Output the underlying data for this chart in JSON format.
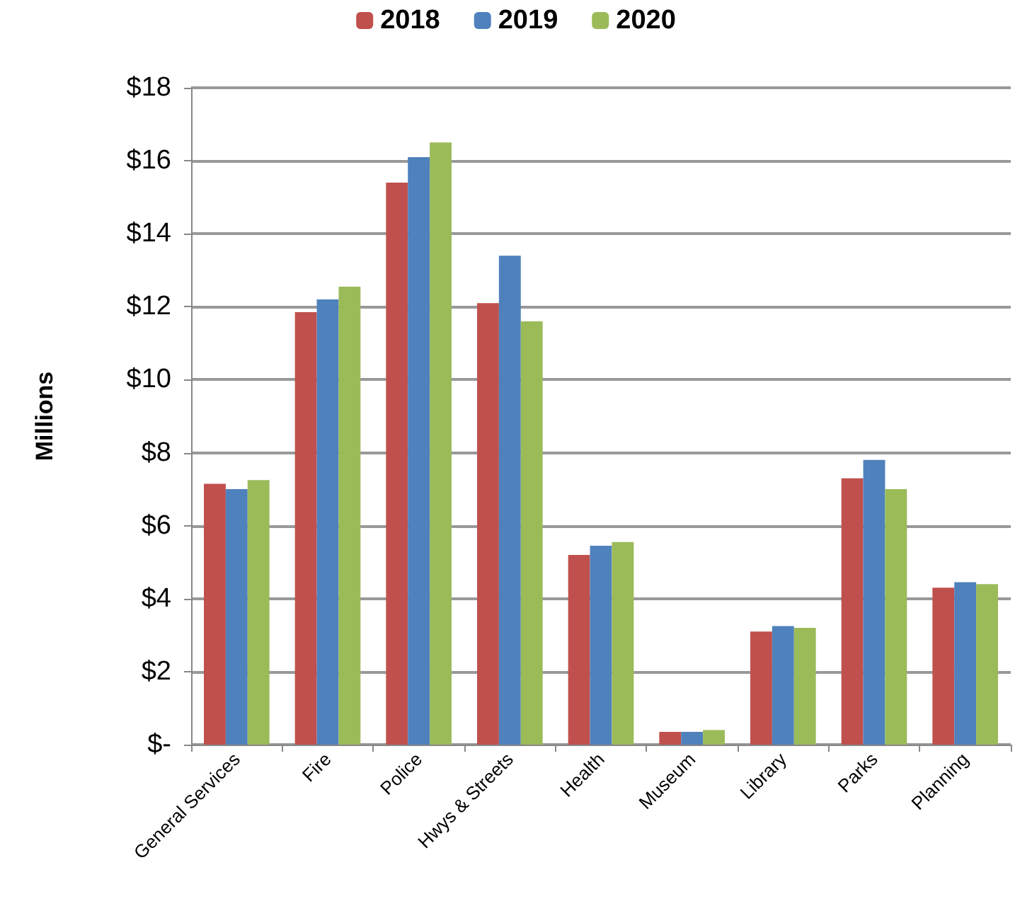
{
  "chart_data": {
    "type": "bar",
    "ylabel": "Millions",
    "categories": [
      "General Services",
      "Fire",
      "Police",
      "Hwys & Streets",
      "Health",
      "Museum",
      "Library",
      "Parks",
      "Planning"
    ],
    "series": [
      {
        "name": "2018",
        "color": "#c0504d",
        "values": [
          7.15,
          11.85,
          15.4,
          12.1,
          5.2,
          0.35,
          3.1,
          7.3,
          4.3
        ]
      },
      {
        "name": "2019",
        "color": "#4f81bd",
        "values": [
          7.0,
          12.2,
          16.1,
          13.4,
          5.45,
          0.35,
          3.25,
          7.8,
          4.45
        ]
      },
      {
        "name": "2020",
        "color": "#9bbb59",
        "values": [
          7.25,
          12.55,
          16.5,
          11.6,
          5.55,
          0.4,
          3.2,
          7.0,
          4.4
        ]
      }
    ],
    "ylim": [
      0,
      18
    ],
    "yticks": [
      {
        "value": 0,
        "label": "$-"
      },
      {
        "value": 2,
        "label": "$2"
      },
      {
        "value": 4,
        "label": "$4"
      },
      {
        "value": 6,
        "label": "$6"
      },
      {
        "value": 8,
        "label": "$8"
      },
      {
        "value": 10,
        "label": "$10"
      },
      {
        "value": 12,
        "label": "$12"
      },
      {
        "value": 14,
        "label": "$14"
      },
      {
        "value": 16,
        "label": "$16"
      },
      {
        "value": 18,
        "label": "$18"
      }
    ],
    "grid": "y",
    "legend": "top"
  }
}
